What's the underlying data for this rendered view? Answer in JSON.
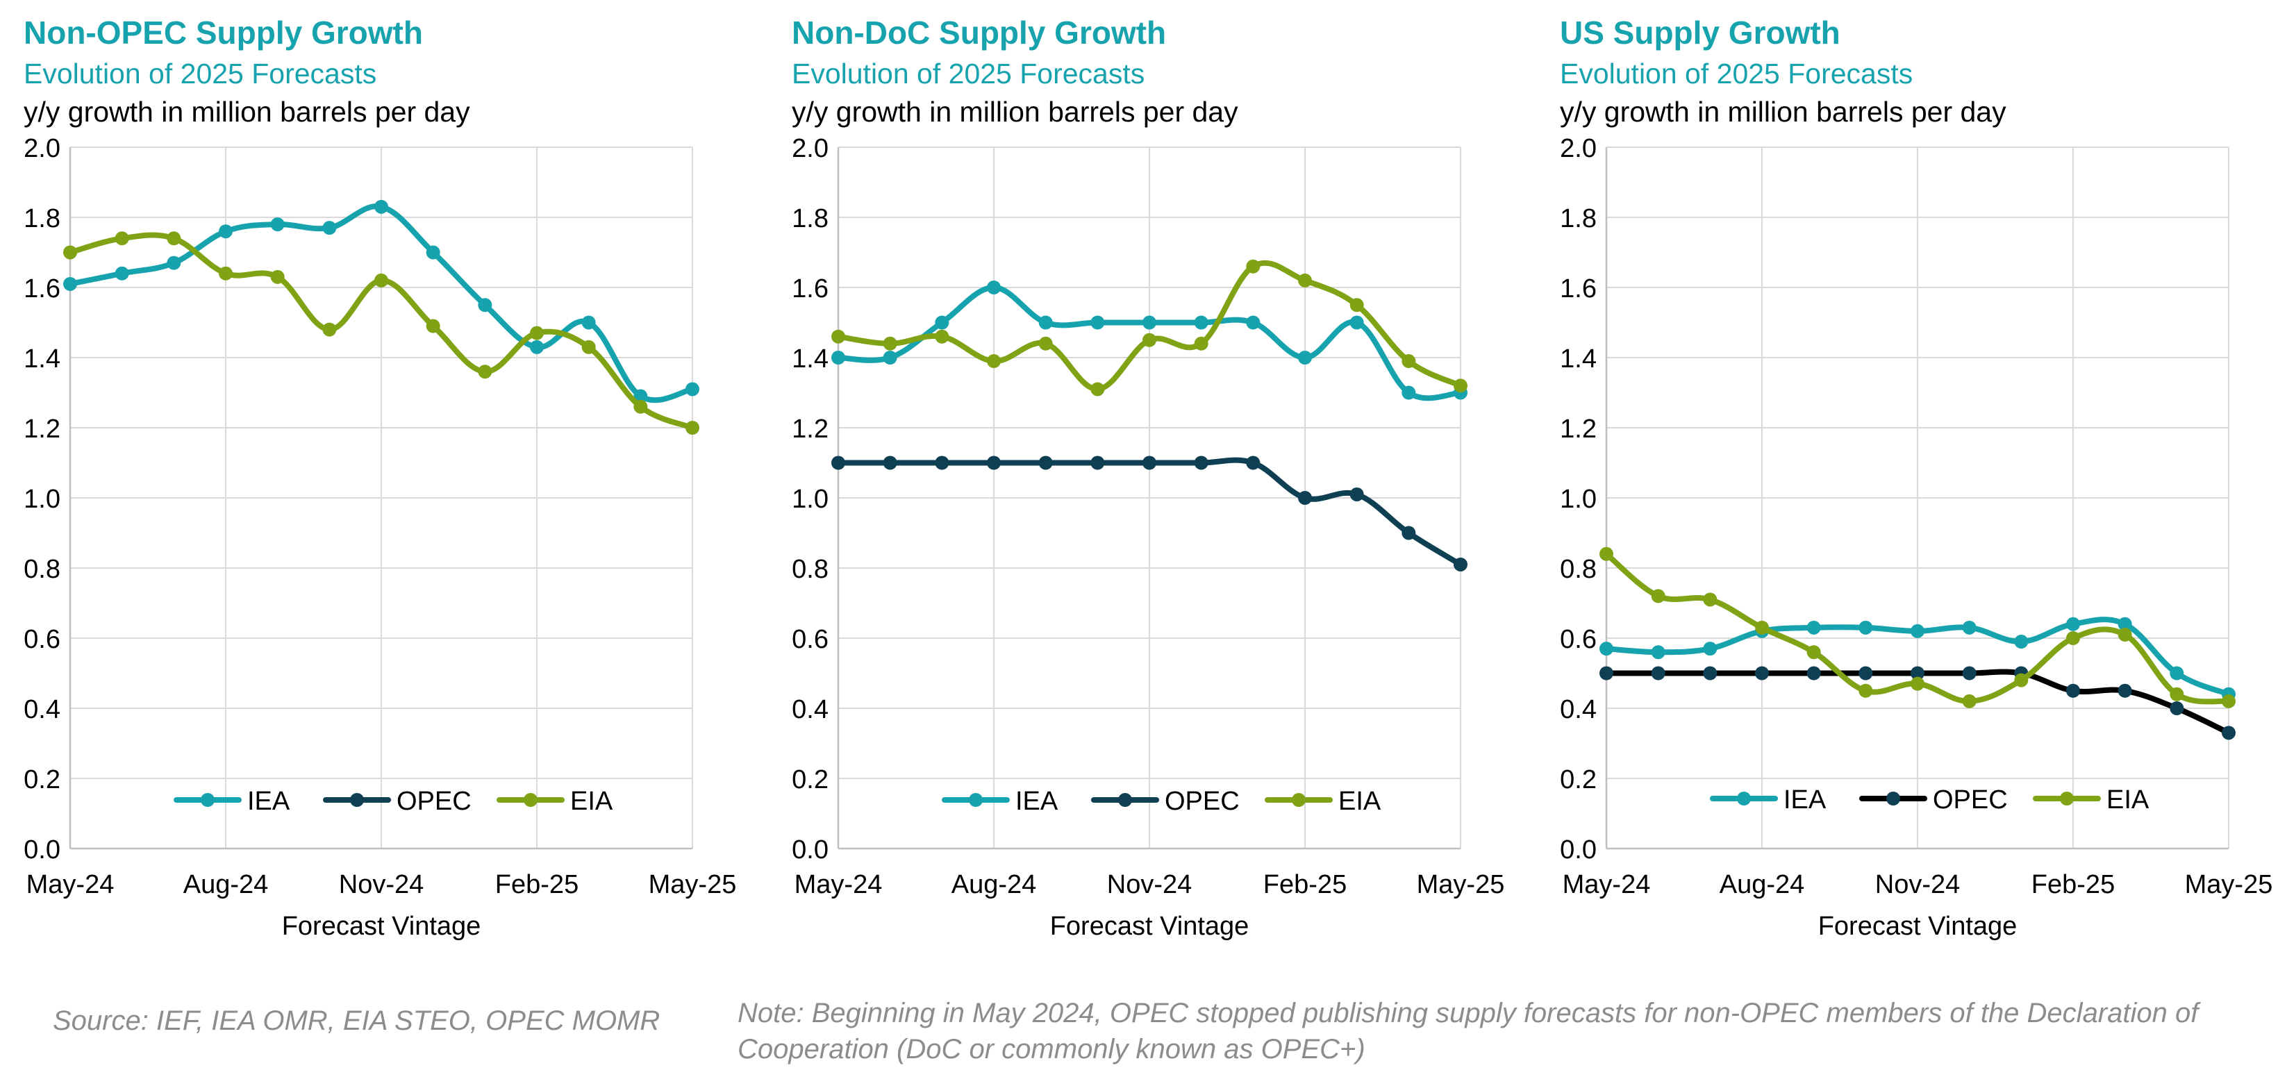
{
  "charts": [
    {
      "title": "Non-OPEC Supply Growth",
      "subtitle": "Evolution of 2025 Forecasts",
      "units": "y/y growth in million barrels per day",
      "xlabel": "Forecast Vintage"
    },
    {
      "title": "Non-DoC Supply Growth",
      "subtitle": "Evolution of 2025 Forecasts",
      "units": "y/y growth in million barrels per day",
      "xlabel": "Forecast Vintage"
    },
    {
      "title": "US Supply Growth",
      "subtitle": "Evolution of 2025 Forecasts",
      "units": "y/y growth in million barrels per day",
      "xlabel": "Forecast Vintage"
    }
  ],
  "source": "Source: IEF, IEA OMR, EIA STEO, OPEC MOMR",
  "note": "Note: Beginning in May 2024, OPEC stopped publishing supply forecasts for non-OPEC members of the Declaration of Cooperation (DoC or commonly known as OPEC+)",
  "colors": {
    "IEA": "#17A3AE",
    "OPEC": "#0E3F52",
    "OPEC_line_us": "#000000",
    "EIA": "#7FA314",
    "title": "#17A3AE",
    "grid": "#D9D9D9",
    "axis": "#BFBFBF",
    "note": "#8C8C8C"
  },
  "chart_data": [
    {
      "type": "line",
      "title": "Non-OPEC Supply Growth",
      "xlabel": "Forecast Vintage",
      "ylabel": "y/y growth in million barrels per day",
      "x_tick_labels": [
        "May-24",
        "Aug-24",
        "Nov-24",
        "Feb-25",
        "May-25"
      ],
      "x_range": [
        0,
        12
      ],
      "ylim": [
        0,
        2
      ],
      "y_ticks": [
        "0.0",
        "0.2",
        "0.4",
        "0.6",
        "0.8",
        "1.0",
        "1.2",
        "1.4",
        "1.6",
        "1.8",
        "2.0"
      ],
      "legend": [
        "IEA",
        "OPEC",
        "EIA"
      ],
      "legend_position": "bottom",
      "series": [
        {
          "name": "IEA",
          "x": [
            0,
            1,
            2,
            3,
            4,
            5,
            6,
            7,
            8,
            9,
            10,
            11,
            12
          ],
          "values": [
            1.61,
            1.64,
            1.67,
            1.76,
            1.78,
            1.77,
            1.83,
            1.7,
            1.55,
            1.43,
            1.5,
            1.29,
            1.31
          ]
        },
        {
          "name": "EIA",
          "x": [
            0,
            1,
            2,
            3,
            4,
            5,
            6,
            7,
            8,
            9,
            10,
            11,
            12
          ],
          "values": [
            1.7,
            1.74,
            1.74,
            1.64,
            1.63,
            1.48,
            1.62,
            1.49,
            1.36,
            1.47,
            1.43,
            1.26,
            1.2
          ]
        }
      ]
    },
    {
      "type": "line",
      "title": "Non-DoC Supply Growth",
      "xlabel": "Forecast Vintage",
      "ylabel": "y/y growth in million barrels per day",
      "x_tick_labels": [
        "May-24",
        "Aug-24",
        "Nov-24",
        "Feb-25",
        "May-25"
      ],
      "x_range": [
        0,
        12
      ],
      "ylim": [
        0,
        2
      ],
      "y_ticks": [
        "0.0",
        "0.2",
        "0.4",
        "0.6",
        "0.8",
        "1.0",
        "1.2",
        "1.4",
        "1.6",
        "1.8",
        "2.0"
      ],
      "legend": [
        "IEA",
        "OPEC",
        "EIA"
      ],
      "legend_position": "bottom",
      "series": [
        {
          "name": "IEA",
          "x": [
            0,
            1,
            2,
            3,
            4,
            5,
            6,
            7,
            8,
            9,
            10,
            11,
            12
          ],
          "values": [
            1.4,
            1.4,
            1.5,
            1.6,
            1.5,
            1.5,
            1.5,
            1.5,
            1.5,
            1.4,
            1.5,
            1.3,
            1.3
          ]
        },
        {
          "name": "OPEC",
          "x": [
            0,
            1,
            2,
            3,
            4,
            5,
            6,
            7,
            8,
            9,
            10,
            11,
            12
          ],
          "values": [
            1.1,
            1.1,
            1.1,
            1.1,
            1.1,
            1.1,
            1.1,
            1.1,
            1.1,
            1.0,
            1.01,
            0.9,
            0.81
          ]
        },
        {
          "name": "EIA",
          "x": [
            0,
            1,
            2,
            3,
            4,
            5,
            6,
            7,
            8,
            9,
            10,
            11,
            12
          ],
          "values": [
            1.46,
            1.44,
            1.46,
            1.39,
            1.44,
            1.31,
            1.45,
            1.44,
            1.66,
            1.62,
            1.55,
            1.39,
            1.32
          ]
        }
      ]
    },
    {
      "type": "line",
      "title": "US Supply Growth",
      "xlabel": "Forecast Vintage",
      "ylabel": "y/y growth in million barrels per day",
      "x_tick_labels": [
        "May-24",
        "Aug-24",
        "Nov-24",
        "Feb-25",
        "May-25"
      ],
      "x_range": [
        0,
        12
      ],
      "ylim": [
        0,
        2
      ],
      "y_ticks": [
        "0.0",
        "0.2",
        "0.4",
        "0.6",
        "0.8",
        "1.0",
        "1.2",
        "1.4",
        "1.6",
        "1.8",
        "2.0"
      ],
      "legend": [
        "IEA",
        "OPEC",
        "EIA"
      ],
      "legend_position": "bottom",
      "series": [
        {
          "name": "IEA",
          "x": [
            0,
            1,
            2,
            3,
            4,
            5,
            6,
            7,
            8,
            9,
            10,
            11,
            12
          ],
          "values": [
            0.57,
            0.56,
            0.57,
            0.62,
            0.63,
            0.63,
            0.62,
            0.63,
            0.59,
            0.64,
            0.64,
            0.5,
            0.44
          ]
        },
        {
          "name": "OPEC",
          "x": [
            0,
            1,
            2,
            3,
            4,
            5,
            6,
            7,
            8,
            9,
            10,
            11,
            12
          ],
          "values": [
            0.5,
            0.5,
            0.5,
            0.5,
            0.5,
            0.5,
            0.5,
            0.5,
            0.5,
            0.45,
            0.45,
            0.4,
            0.33
          ]
        },
        {
          "name": "EIA",
          "x": [
            0,
            1,
            2,
            3,
            4,
            5,
            6,
            7,
            8,
            9,
            10,
            11,
            12
          ],
          "values": [
            0.84,
            0.72,
            0.71,
            0.63,
            0.56,
            0.45,
            0.47,
            0.42,
            0.48,
            0.6,
            0.61,
            0.44,
            0.42
          ]
        }
      ]
    }
  ]
}
